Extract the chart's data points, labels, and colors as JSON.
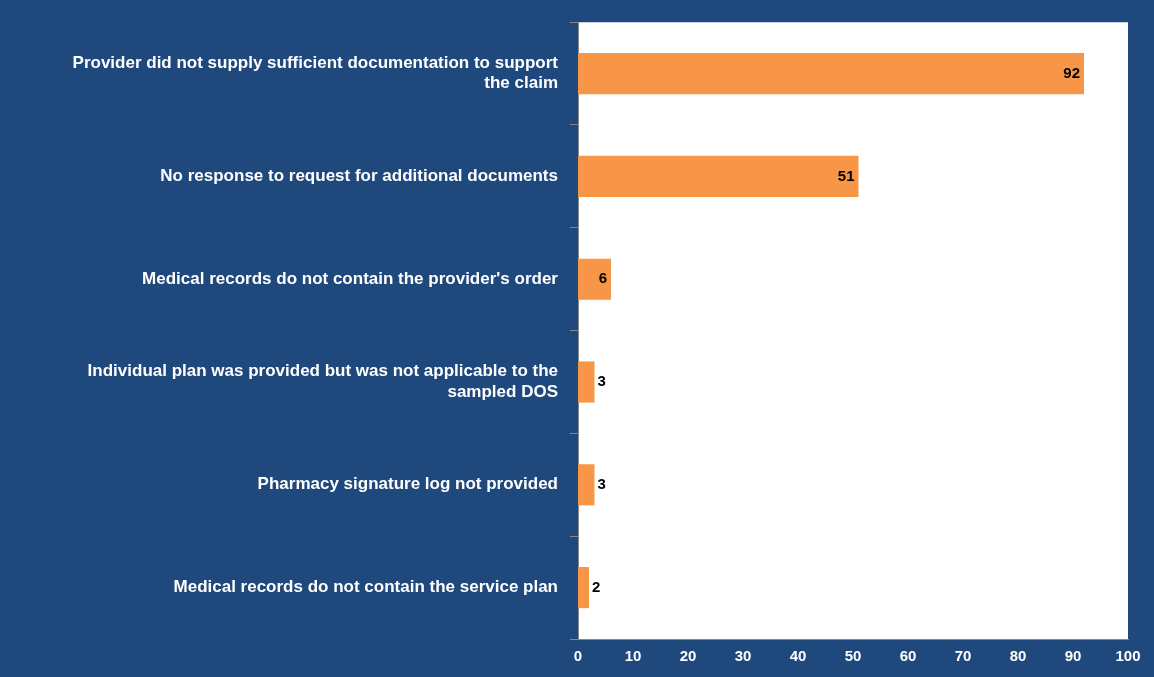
{
  "chart_data": {
    "type": "bar",
    "orientation": "horizontal",
    "categories": [
      "Provider did not supply sufficient documentation to support the claim",
      "No response to request for additional documents",
      "Medical records do not contain the provider's order",
      "Individual plan was provided but was not applicable to the sampled DOS",
      "Pharmacy signature log not provided",
      "Medical records do not contain the service plan"
    ],
    "values": [
      92,
      51,
      6,
      3,
      3,
      2
    ],
    "color": "#f79646",
    "xlim": [
      0,
      100
    ],
    "xticks": [
      0,
      10,
      20,
      30,
      40,
      50,
      60,
      70,
      80,
      90,
      100
    ],
    "data_labels": true,
    "grid": false,
    "legend": false
  }
}
